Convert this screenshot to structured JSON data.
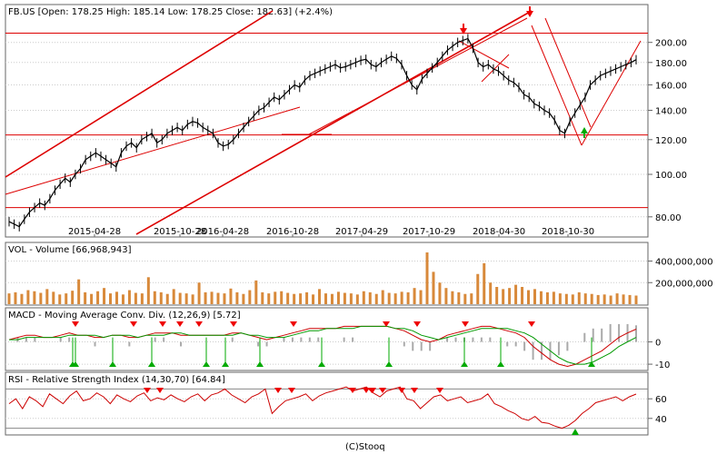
{
  "chart_data": [
    {
      "type": "line",
      "panel": "price",
      "title": "FB.US [Open: 178.25  High: 185.14  Low: 178.25  Close: 182.63] (+2.4%)",
      "x_tick_labels": [
        "2015-04-28",
        "2015-10-28",
        "2016-04-28",
        "2016-10-28",
        "2017-04-29",
        "2017-10-29",
        "2018-04-30",
        "2018-10-30"
      ],
      "y_tick_labels": [
        "80.00",
        "100.00",
        "120.00",
        "140.00",
        "160.00",
        "180.00",
        "200.00"
      ],
      "y_scale": "log",
      "ylim": [
        73,
        225
      ],
      "grid": "horizontal",
      "series": [
        {
          "values": [
            78,
            77,
            76,
            79,
            82,
            84,
            86,
            85,
            88,
            92,
            95,
            98,
            96,
            100,
            103,
            108,
            110,
            112,
            110,
            108,
            106,
            104,
            112,
            116,
            118,
            115,
            120,
            122,
            124,
            118,
            120,
            124,
            126,
            128,
            126,
            130,
            132,
            131,
            128,
            126,
            124,
            118,
            116,
            117,
            120,
            124,
            128,
            132,
            136,
            140,
            142,
            146,
            150,
            148,
            152,
            156,
            160,
            158,
            164,
            168,
            170,
            172,
            174,
            176,
            178,
            175,
            176,
            178,
            180,
            182,
            183,
            178,
            176,
            180,
            183,
            186,
            184,
            178,
            168,
            160,
            156,
            165,
            170,
            175,
            180,
            186,
            192,
            196,
            200,
            202,
            204,
            194,
            180,
            176,
            178,
            174,
            172,
            168,
            164,
            162,
            158,
            152,
            150,
            145,
            143,
            140,
            138,
            133,
            126,
            124,
            132,
            138,
            144,
            150,
            160,
            164,
            168,
            170,
            172,
            174,
            176,
            178,
            180,
            182.63
          ]
        }
      ]
    },
    {
      "type": "bar",
      "panel": "volume",
      "title": "VOL - Volume [66,968,943]",
      "y_tick_labels": [
        "200,000,000",
        "400,000,000"
      ],
      "ylim": [
        0,
        480000000
      ],
      "series": [
        {
          "values": [
            100000000,
            110000000,
            95000000,
            130000000,
            120000000,
            105000000,
            140000000,
            115000000,
            90000000,
            100000000,
            125000000,
            230000000,
            110000000,
            95000000,
            120000000,
            150000000,
            100000000,
            115000000,
            90000000,
            130000000,
            105000000,
            100000000,
            250000000,
            120000000,
            110000000,
            95000000,
            140000000,
            105000000,
            100000000,
            90000000,
            200000000,
            110000000,
            115000000,
            105000000,
            100000000,
            145000000,
            110000000,
            95000000,
            130000000,
            220000000,
            110000000,
            100000000,
            115000000,
            120000000,
            105000000,
            95000000,
            100000000,
            110000000,
            90000000,
            140000000,
            100000000,
            95000000,
            115000000,
            105000000,
            100000000,
            90000000,
            120000000,
            110000000,
            95000000,
            130000000,
            105000000,
            100000000,
            115000000,
            110000000,
            150000000,
            130000000,
            480000000,
            300000000,
            200000000,
            150000000,
            120000000,
            110000000,
            95000000,
            100000000,
            280000000,
            380000000,
            200000000,
            160000000,
            140000000,
            150000000,
            180000000,
            160000000,
            130000000,
            140000000,
            120000000,
            110000000,
            115000000,
            100000000,
            95000000,
            90000000,
            110000000,
            100000000,
            95000000,
            85000000,
            90000000,
            80000000,
            100000000,
            90000000,
            85000000,
            80000000
          ]
        }
      ]
    },
    {
      "type": "line",
      "panel": "macd",
      "title": "MACD - Moving Average Conv. Div. (12,26,9) [5.72]",
      "y_tick_labels": [
        "-10",
        "0"
      ],
      "ylim": [
        -12,
        10
      ],
      "series": [
        {
          "values": [
            1,
            2,
            3,
            3,
            2,
            2,
            3,
            4,
            3,
            3,
            2,
            2,
            3,
            3,
            2,
            2,
            3,
            4,
            4,
            4,
            3,
            3,
            3,
            3,
            3,
            3,
            4,
            4,
            3,
            2,
            1,
            2,
            3,
            4,
            5,
            6,
            6,
            6,
            6,
            7,
            7,
            7,
            7,
            7,
            7,
            6,
            5,
            3,
            1,
            0,
            1,
            3,
            4,
            5,
            6,
            7,
            7,
            6,
            5,
            4,
            2,
            -2,
            -5,
            -8,
            -10,
            -11,
            -10,
            -8,
            -6,
            -4,
            -1,
            2,
            4,
            5.72
          ]
        },
        {
          "values": [
            1,
            1,
            2,
            2,
            2,
            2,
            2,
            3,
            3,
            3,
            3,
            2,
            3,
            3,
            3,
            2,
            3,
            3,
            3,
            4,
            4,
            3,
            3,
            3,
            3,
            3,
            3,
            4,
            3,
            3,
            2,
            2,
            2,
            3,
            4,
            5,
            5,
            6,
            6,
            6,
            6,
            7,
            7,
            7,
            7,
            6,
            6,
            5,
            3,
            2,
            1,
            2,
            3,
            4,
            5,
            6,
            6,
            6,
            6,
            5,
            4,
            2,
            -1,
            -4,
            -7,
            -9,
            -10,
            -10,
            -9,
            -7,
            -5,
            -2,
            0,
            2
          ]
        }
      ],
      "markers_up": 13,
      "markers_down": 11
    },
    {
      "type": "line",
      "panel": "rsi",
      "title": "RSI - Relative Strength Index (14,30,70) [64.84]",
      "y_tick_labels": [
        "40",
        "60"
      ],
      "ylim": [
        25,
        75
      ],
      "series": [
        {
          "values": [
            55,
            60,
            50,
            62,
            58,
            52,
            65,
            60,
            55,
            63,
            68,
            58,
            60,
            66,
            62,
            55,
            64,
            60,
            57,
            63,
            66,
            58,
            61,
            59,
            64,
            60,
            57,
            62,
            65,
            58,
            64,
            66,
            70,
            64,
            60,
            56,
            62,
            65,
            70,
            45,
            52,
            58,
            60,
            62,
            65,
            58,
            63,
            66,
            68,
            70,
            72,
            68,
            70,
            72,
            66,
            62,
            68,
            70,
            72,
            60,
            58,
            50,
            56,
            62,
            64,
            58,
            60,
            62,
            56,
            58,
            60,
            65,
            55,
            52,
            48,
            45,
            40,
            38,
            42,
            36,
            35,
            32,
            30,
            33,
            38,
            45,
            50,
            56,
            58,
            60,
            62,
            58,
            62,
            64.84
          ]
        }
      ],
      "markers_up": 1,
      "markers_down": 12
    }
  ],
  "footer": "(C)Stooq",
  "colors": {
    "price_line": "#000000",
    "trend_line": "#dd0000",
    "volume_bar": "#d8893a",
    "macd_line": "#cc0000",
    "signal_line": "#009900",
    "histogram": "#aaaaaa",
    "rsi_line": "#cc0000",
    "up_marker": "#00aa00",
    "down_marker": "#ee0000",
    "panel_border": "#666666",
    "grid": "#cccccc"
  }
}
